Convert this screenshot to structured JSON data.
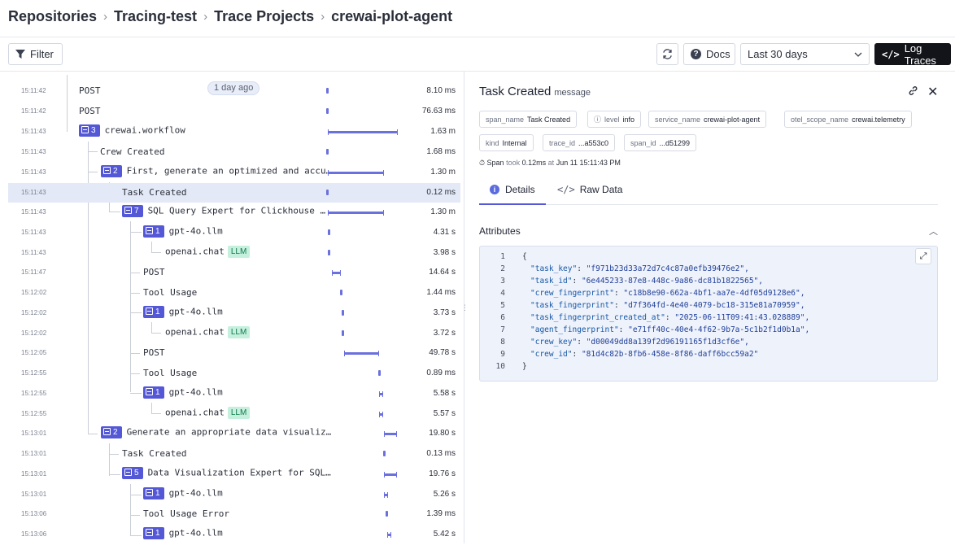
{
  "breadcrumb": [
    "Repositories",
    "Tracing-test",
    "Trace Projects",
    "crewai-plot-agent"
  ],
  "toolbar": {
    "filter_label": "Filter",
    "docs_label": "Docs",
    "range_label": "Last 30 days",
    "log_traces_label": "Log Traces"
  },
  "trace": {
    "ago_label": "1 day ago",
    "rows": [
      {
        "time": "15:11:42",
        "label": "POST",
        "duration": "8.10 ms"
      },
      {
        "time": "15:11:42",
        "label": "POST",
        "duration": "76.63 ms"
      },
      {
        "time": "15:11:43",
        "count": "3",
        "label": "crewai.workflow",
        "duration": "1.63 m"
      },
      {
        "time": "15:11:43",
        "label": "Crew Created",
        "duration": "1.68 ms"
      },
      {
        "time": "15:11:43",
        "count": "2",
        "label": "First, generate an optimized and accu…",
        "duration": "1.30 m"
      },
      {
        "time": "15:11:43",
        "label": "Task Created",
        "duration": "0.12 ms"
      },
      {
        "time": "15:11:43",
        "count": "7",
        "label": "SQL Query Expert for Clickhouse …",
        "duration": "1.30 m"
      },
      {
        "time": "15:11:43",
        "count": "1",
        "label": "gpt-4o.llm",
        "duration": "4.31 s"
      },
      {
        "time": "15:11:43",
        "label": "openai.chat",
        "tag": "LLM",
        "duration": "3.98 s"
      },
      {
        "time": "15:11:47",
        "label": "POST",
        "duration": "14.64 s"
      },
      {
        "time": "15:12:02",
        "label": "Tool Usage",
        "duration": "1.44 ms"
      },
      {
        "time": "15:12:02",
        "count": "1",
        "label": "gpt-4o.llm",
        "duration": "3.73 s"
      },
      {
        "time": "15:12:02",
        "label": "openai.chat",
        "tag": "LLM",
        "duration": "3.72 s"
      },
      {
        "time": "15:12:05",
        "label": "POST",
        "duration": "49.78 s"
      },
      {
        "time": "15:12:55",
        "label": "Tool Usage",
        "duration": "0.89 ms"
      },
      {
        "time": "15:12:55",
        "count": "1",
        "label": "gpt-4o.llm",
        "duration": "5.58 s"
      },
      {
        "time": "15:12:55",
        "label": "openai.chat",
        "tag": "LLM",
        "duration": "5.57 s"
      },
      {
        "time": "15:13:01",
        "count": "2",
        "label": "Generate an appropriate data visualiz…",
        "duration": "19.80 s"
      },
      {
        "time": "15:13:01",
        "label": "Task Created",
        "duration": "0.13 ms"
      },
      {
        "time": "15:13:01",
        "count": "5",
        "label": "Data Visualization Expert for SQL…",
        "duration": "19.76 s"
      },
      {
        "time": "15:13:01",
        "count": "1",
        "label": "gpt-4o.llm",
        "duration": "5.26 s"
      },
      {
        "time": "15:13:06",
        "label": "Tool Usage Error",
        "duration": "1.39 ms"
      },
      {
        "time": "15:13:06",
        "count": "1",
        "label": "gpt-4o.llm",
        "duration": "5.42 s"
      }
    ]
  },
  "detail": {
    "title": "Task Created",
    "subtitle": "message",
    "chips": [
      {
        "key": "span_name",
        "value": "Task Created"
      },
      {
        "key": "level",
        "value": "info"
      },
      {
        "key": "service_name",
        "value": "crewai-plot-agent"
      },
      {
        "key": "otel_scope_name",
        "value": "crewai.telemetry"
      },
      {
        "key": "kind",
        "value": "Internal"
      },
      {
        "key": "trace_id",
        "value": "...a553c0"
      },
      {
        "key": "span_id",
        "value": "...d51299"
      }
    ],
    "span_info": {
      "prefix": "Span",
      "took": "took",
      "duration": "0.12ms",
      "at": "at",
      "time": "Jun 11 15:11:43 PM"
    },
    "tabs": [
      "Details",
      "Raw Data"
    ],
    "attributes_title": "Attributes",
    "code_lines": [
      {
        "n": "1",
        "text": "{"
      },
      {
        "n": "2",
        "key": "\"task_key\"",
        "value": "\"f971b23d33a72d7c4c87a0efb39476e2\","
      },
      {
        "n": "3",
        "key": "\"task_id\"",
        "value": "\"6e445233-87e8-448c-9a86-dc81b1822565\","
      },
      {
        "n": "4",
        "key": "\"crew_fingerprint\"",
        "value": "\"c18b8e90-662a-4bf1-aa7e-4df05d9128e6\","
      },
      {
        "n": "5",
        "key": "\"task_fingerprint\"",
        "value": "\"d7f364fd-4e40-4079-bc18-315e81a70959\","
      },
      {
        "n": "6",
        "key": "\"task_fingerprint_created_at\"",
        "value": "\"2025-06-11T09:41:43.028889\","
      },
      {
        "n": "7",
        "key": "\"agent_fingerprint\"",
        "value": "\"e71ff40c-40e4-4f62-9b7a-5c1b2f1d0b1a\","
      },
      {
        "n": "8",
        "key": "\"crew_key\"",
        "value": "\"d00049dd8a139f2d96191165f1d3cf6e\","
      },
      {
        "n": "9",
        "key": "\"crew_id\"",
        "value": "\"81d4c82b-8fb6-458e-8f86-daff6bcc59a2\""
      },
      {
        "n": "10",
        "text": "}"
      }
    ]
  }
}
